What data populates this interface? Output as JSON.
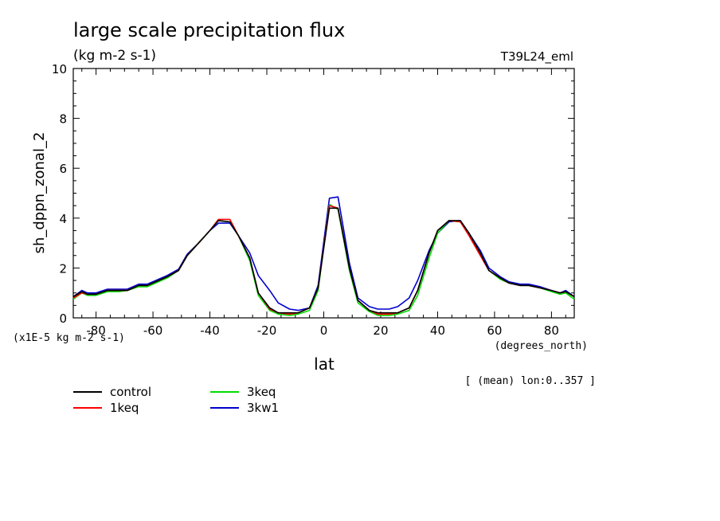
{
  "chart_data": {
    "type": "line",
    "title": "large scale precipitation flux",
    "subtitle": "(kg m-2 s-1)",
    "top_right_label": "T39L24_eml",
    "xlabel": "lat",
    "x_units": "(degrees_north)",
    "ylabel": "sh_dppn_zonal_2",
    "y_scale_note": "(x1E-5 kg m-2 s-1)",
    "footnote": "[ (mean) lon:0..357 ]",
    "xlim": [
      -88,
      88
    ],
    "ylim": [
      0,
      10
    ],
    "x_ticks": [
      -80,
      -60,
      -40,
      -20,
      0,
      20,
      40,
      60,
      80
    ],
    "x_tick_labels": [
      "-80",
      "-60",
      "-40",
      "-20",
      "0",
      "20",
      "40",
      "60",
      "80"
    ],
    "y_ticks": [
      0,
      2,
      4,
      6,
      8,
      10
    ],
    "y_tick_labels": [
      "0",
      "2",
      "4",
      "6",
      "8",
      "10"
    ],
    "grid": false,
    "legend_position": "bottom-left",
    "x": [
      -88,
      -85,
      -83,
      -80,
      -76,
      -72,
      -69,
      -65,
      -62,
      -58,
      -55,
      -51,
      -48,
      -44,
      -40,
      -37,
      -33,
      -30,
      -26,
      -23,
      -19,
      -16,
      -12,
      -9,
      -5,
      -2,
      2,
      5,
      9,
      12,
      16,
      19,
      23,
      26,
      30,
      33,
      37,
      40,
      44,
      48,
      51,
      55,
      58,
      62,
      65,
      69,
      72,
      76,
      80,
      83,
      85,
      88
    ],
    "series": [
      {
        "name": "control",
        "color": "#000000",
        "values": [
          0.85,
          1.05,
          0.95,
          0.95,
          1.1,
          1.1,
          1.1,
          1.3,
          1.3,
          1.5,
          1.65,
          1.9,
          2.5,
          3.0,
          3.5,
          3.9,
          3.85,
          3.3,
          2.4,
          1.0,
          0.4,
          0.2,
          0.2,
          0.2,
          0.4,
          1.2,
          4.4,
          4.4,
          2.0,
          0.7,
          0.3,
          0.2,
          0.2,
          0.2,
          0.4,
          1.1,
          2.6,
          3.5,
          3.9,
          3.9,
          3.4,
          2.6,
          1.9,
          1.6,
          1.4,
          1.3,
          1.3,
          1.2,
          1.1,
          1.0,
          1.05,
          0.85
        ]
      },
      {
        "name": "1keq",
        "color": "#ff0000",
        "values": [
          0.8,
          1.0,
          0.95,
          0.95,
          1.1,
          1.1,
          1.1,
          1.3,
          1.3,
          1.5,
          1.65,
          1.9,
          2.5,
          3.0,
          3.5,
          3.95,
          3.95,
          3.3,
          2.4,
          1.0,
          0.35,
          0.2,
          0.15,
          0.2,
          0.4,
          1.2,
          4.5,
          4.4,
          2.0,
          0.7,
          0.3,
          0.15,
          0.15,
          0.2,
          0.4,
          1.1,
          2.6,
          3.5,
          3.9,
          3.85,
          3.3,
          2.5,
          1.9,
          1.6,
          1.4,
          1.3,
          1.3,
          1.2,
          1.1,
          1.0,
          1.05,
          0.85
        ]
      },
      {
        "name": "3keq",
        "color": "#00dd00",
        "values": [
          0.75,
          1.0,
          0.9,
          0.9,
          1.05,
          1.05,
          1.1,
          1.25,
          1.25,
          1.45,
          1.6,
          1.9,
          2.5,
          3.0,
          3.5,
          3.9,
          3.85,
          3.3,
          2.3,
          0.9,
          0.3,
          0.15,
          0.1,
          0.15,
          0.3,
          1.1,
          4.55,
          4.35,
          1.9,
          0.6,
          0.25,
          0.1,
          0.1,
          0.15,
          0.3,
          0.9,
          2.4,
          3.4,
          3.9,
          3.85,
          3.4,
          2.6,
          1.9,
          1.55,
          1.4,
          1.3,
          1.3,
          1.2,
          1.05,
          0.95,
          1.0,
          0.75
        ]
      },
      {
        "name": "3kw1",
        "color": "#0000cc",
        "values": [
          0.85,
          1.1,
          1.0,
          1.0,
          1.15,
          1.15,
          1.15,
          1.35,
          1.35,
          1.55,
          1.7,
          1.95,
          2.55,
          3.0,
          3.5,
          3.8,
          3.8,
          3.3,
          2.6,
          1.7,
          1.1,
          0.6,
          0.35,
          0.3,
          0.4,
          1.3,
          4.8,
          4.85,
          2.2,
          0.8,
          0.45,
          0.35,
          0.35,
          0.45,
          0.8,
          1.5,
          2.7,
          3.4,
          3.85,
          3.9,
          3.4,
          2.7,
          2.0,
          1.65,
          1.45,
          1.35,
          1.35,
          1.25,
          1.1,
          1.0,
          1.1,
          0.85
        ]
      }
    ]
  }
}
